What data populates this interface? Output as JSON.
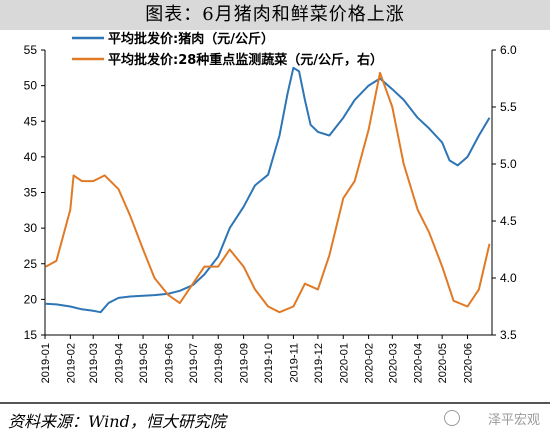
{
  "title": "图表：6月猪肉和鲜菜价格上涨",
  "source": "资料来源：Wind，恒大研究院",
  "watermark": "泽平宏观",
  "chart_data": {
    "type": "line",
    "x_ticks": [
      "2019-01",
      "2019-02",
      "2019-03",
      "2019-04",
      "2019-05",
      "2019-06",
      "2019-07",
      "2019-08",
      "2019-09",
      "2019-10",
      "2019-11",
      "2019-12",
      "2020-01",
      "2020-02",
      "2020-03",
      "2020-04",
      "2020-05",
      "2020-06"
    ],
    "y_left": {
      "min": 15,
      "max": 55,
      "ticks": [
        15,
        20,
        25,
        30,
        35,
        40,
        45,
        50,
        55
      ]
    },
    "y_right": {
      "min": 3.5,
      "max": 6.0,
      "ticks": [
        3.5,
        4.0,
        4.5,
        5.0,
        5.5,
        6.0
      ],
      "labels": [
        "3.5",
        "4.0",
        "4.5",
        "5.0",
        "5.5",
        "6.0"
      ]
    },
    "colors": {
      "pork": "#2e75b6",
      "veg": "#e07a26"
    },
    "series": [
      {
        "name": "平均批发价:猪肉（元/公斤）",
        "axis": "left",
        "points": [
          [
            "2019-01-02",
            19.4
          ],
          [
            "2019-01-15",
            19.3
          ],
          [
            "2019-02-01",
            19.0
          ],
          [
            "2019-02-15",
            18.6
          ],
          [
            "2019-03-01",
            18.4
          ],
          [
            "2019-03-10",
            18.2
          ],
          [
            "2019-03-20",
            19.5
          ],
          [
            "2019-04-01",
            20.2
          ],
          [
            "2019-04-15",
            20.4
          ],
          [
            "2019-05-01",
            20.5
          ],
          [
            "2019-05-15",
            20.6
          ],
          [
            "2019-06-01",
            20.8
          ],
          [
            "2019-06-15",
            21.2
          ],
          [
            "2019-07-01",
            22.0
          ],
          [
            "2019-07-15",
            23.5
          ],
          [
            "2019-08-01",
            26.0
          ],
          [
            "2019-08-15",
            30.0
          ],
          [
            "2019-09-01",
            33.0
          ],
          [
            "2019-09-15",
            36.0
          ],
          [
            "2019-10-01",
            37.5
          ],
          [
            "2019-10-15",
            43.0
          ],
          [
            "2019-10-25",
            49.0
          ],
          [
            "2019-11-01",
            52.5
          ],
          [
            "2019-11-08",
            52.0
          ],
          [
            "2019-11-15",
            48.0
          ],
          [
            "2019-11-22",
            44.5
          ],
          [
            "2019-12-01",
            43.5
          ],
          [
            "2019-12-15",
            43.0
          ],
          [
            "2020-01-01",
            45.5
          ],
          [
            "2020-01-15",
            48.0
          ],
          [
            "2020-02-01",
            50.0
          ],
          [
            "2020-02-15",
            51.0
          ],
          [
            "2020-03-01",
            49.5
          ],
          [
            "2020-03-15",
            48.0
          ],
          [
            "2020-04-01",
            45.5
          ],
          [
            "2020-04-15",
            44.0
          ],
          [
            "2020-05-01",
            42.0
          ],
          [
            "2020-05-10",
            39.5
          ],
          [
            "2020-05-20",
            38.8
          ],
          [
            "2020-06-01",
            40.0
          ],
          [
            "2020-06-15",
            43.0
          ],
          [
            "2020-06-28",
            45.5
          ]
        ]
      },
      {
        "name": "平均批发价:28种重点监测蔬菜（元/公斤，右）",
        "axis": "right",
        "points": [
          [
            "2019-01-02",
            4.1
          ],
          [
            "2019-01-15",
            4.15
          ],
          [
            "2019-02-01",
            4.6
          ],
          [
            "2019-02-05",
            4.9
          ],
          [
            "2019-02-15",
            4.85
          ],
          [
            "2019-03-01",
            4.85
          ],
          [
            "2019-03-15",
            4.9
          ],
          [
            "2019-04-01",
            4.78
          ],
          [
            "2019-04-15",
            4.55
          ],
          [
            "2019-05-01",
            4.25
          ],
          [
            "2019-05-15",
            4.0
          ],
          [
            "2019-06-01",
            3.85
          ],
          [
            "2019-06-15",
            3.78
          ],
          [
            "2019-07-01",
            3.95
          ],
          [
            "2019-07-15",
            4.1
          ],
          [
            "2019-08-01",
            4.1
          ],
          [
            "2019-08-15",
            4.25
          ],
          [
            "2019-09-01",
            4.1
          ],
          [
            "2019-09-15",
            3.9
          ],
          [
            "2019-10-01",
            3.75
          ],
          [
            "2019-10-15",
            3.7
          ],
          [
            "2019-11-01",
            3.75
          ],
          [
            "2019-11-15",
            3.95
          ],
          [
            "2019-12-01",
            3.9
          ],
          [
            "2019-12-15",
            4.2
          ],
          [
            "2020-01-01",
            4.7
          ],
          [
            "2020-01-15",
            4.85
          ],
          [
            "2020-02-01",
            5.3
          ],
          [
            "2020-02-15",
            5.8
          ],
          [
            "2020-03-01",
            5.5
          ],
          [
            "2020-03-15",
            5.0
          ],
          [
            "2020-04-01",
            4.6
          ],
          [
            "2020-04-15",
            4.4
          ],
          [
            "2020-05-01",
            4.1
          ],
          [
            "2020-05-15",
            3.8
          ],
          [
            "2020-06-01",
            3.75
          ],
          [
            "2020-06-15",
            3.9
          ],
          [
            "2020-06-28",
            4.3
          ]
        ]
      }
    ]
  }
}
